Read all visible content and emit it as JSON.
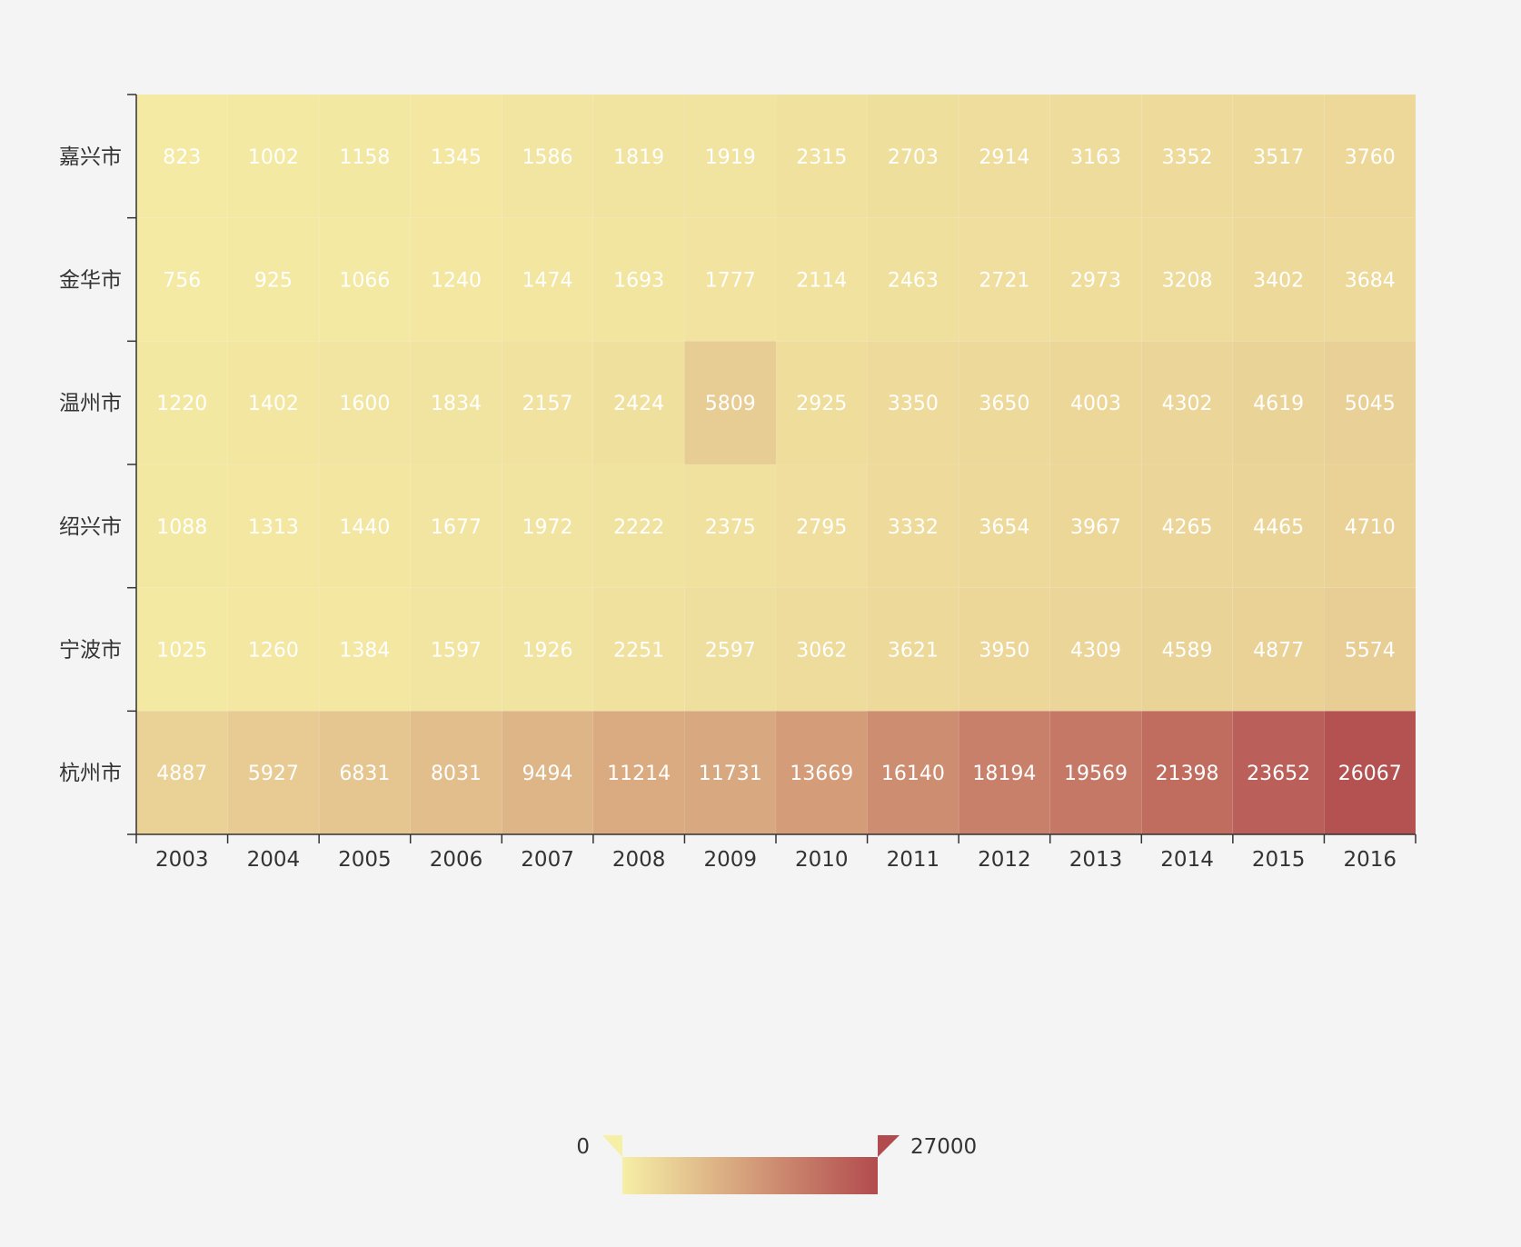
{
  "chart_data": {
    "type": "heatmap",
    "x_categories": [
      "2003",
      "2004",
      "2005",
      "2006",
      "2007",
      "2008",
      "2009",
      "2010",
      "2011",
      "2012",
      "2013",
      "2014",
      "2015",
      "2016"
    ],
    "y_categories": [
      "嘉兴市",
      "金华市",
      "温州市",
      "绍兴市",
      "宁波市",
      "杭州市"
    ],
    "values": [
      [
        823,
        1002,
        1158,
        1345,
        1586,
        1819,
        1919,
        2315,
        2703,
        2914,
        3163,
        3352,
        3517,
        3760
      ],
      [
        756,
        925,
        1066,
        1240,
        1474,
        1693,
        1777,
        2114,
        2463,
        2721,
        2973,
        3208,
        3402,
        3684
      ],
      [
        1220,
        1402,
        1600,
        1834,
        2157,
        2424,
        5809,
        2925,
        3350,
        3650,
        4003,
        4302,
        4619,
        5045
      ],
      [
        1088,
        1313,
        1440,
        1677,
        1972,
        2222,
        2375,
        2795,
        3332,
        3654,
        3967,
        4265,
        4465,
        4710
      ],
      [
        1025,
        1260,
        1384,
        1597,
        1926,
        2251,
        2597,
        3062,
        3621,
        3950,
        4309,
        4589,
        4877,
        5574
      ],
      [
        4887,
        5927,
        6831,
        8031,
        9494,
        11214,
        11731,
        13669,
        16140,
        18194,
        19569,
        21398,
        23652,
        26067
      ]
    ],
    "visual_map": {
      "min": 0,
      "max": 27000,
      "min_label": "0",
      "max_label": "27000",
      "color_start": "#f6efa6",
      "color_end": "#b24b4e",
      "orient": "horizontal",
      "placement": "bottom-center"
    }
  },
  "colors": {
    "background": "#f4f4f4",
    "axis": "#333333",
    "cell_text": "#ffffff"
  }
}
